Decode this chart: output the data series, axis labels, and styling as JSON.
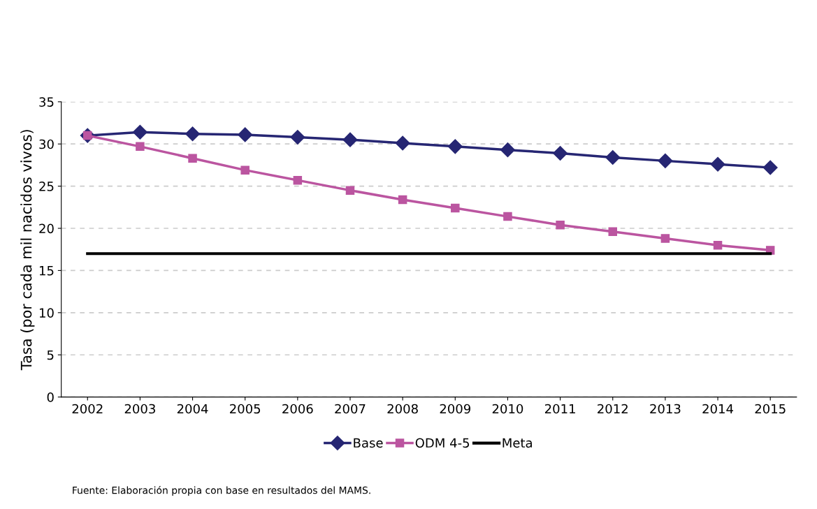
{
  "chart_data": {
    "type": "line",
    "ylabel": "Tasa (por cada mil nacidos vivos)",
    "categories": [
      "2002",
      "2003",
      "2004",
      "2005",
      "2006",
      "2007",
      "2008",
      "2009",
      "2010",
      "2011",
      "2012",
      "2013",
      "2014",
      "2015"
    ],
    "series": [
      {
        "name": "Base",
        "color": "#262673",
        "marker": "diamond",
        "values": [
          31.0,
          31.4,
          31.2,
          31.1,
          30.8,
          30.5,
          30.1,
          29.7,
          29.3,
          28.9,
          28.4,
          28.0,
          27.6,
          27.2
        ]
      },
      {
        "name": "ODM 4-5",
        "color": "#bb55a0",
        "marker": "square",
        "values": [
          31.0,
          29.7,
          28.3,
          26.9,
          25.7,
          24.5,
          23.4,
          22.4,
          21.4,
          20.4,
          19.6,
          18.8,
          18.0,
          17.4
        ]
      },
      {
        "name": "Meta",
        "color": "#000000",
        "marker": "none",
        "values": [
          17,
          17,
          17,
          17,
          17,
          17,
          17,
          17,
          17,
          17,
          17,
          17,
          17,
          17
        ]
      }
    ],
    "ylim": [
      0,
      35
    ],
    "yticks": [
      0,
      5,
      10,
      15,
      20,
      25,
      30,
      35
    ],
    "grid": "y",
    "legend": "bottom",
    "annotations": [
      "Fuente: Elaboración propia con base en resultados del MAMS."
    ]
  }
}
